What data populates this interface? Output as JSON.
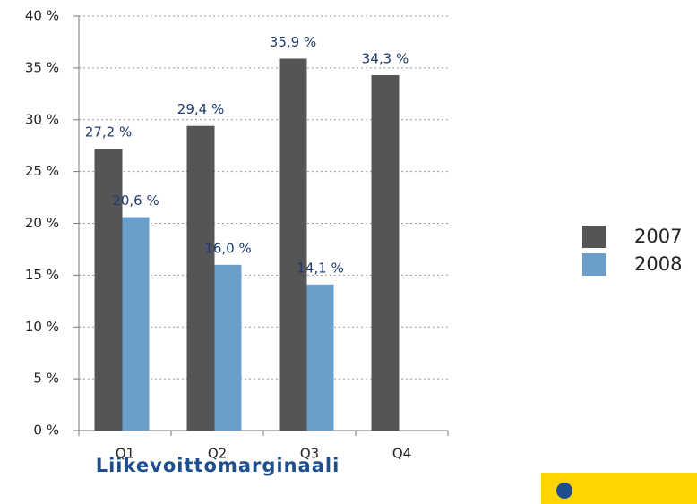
{
  "chart_data": {
    "type": "bar",
    "title": "Liikevoittomarginaali",
    "categories": [
      "Q1",
      "Q2",
      "Q3",
      "Q4"
    ],
    "series": [
      {
        "name": "2007",
        "color": "#555555",
        "values": [
          27.2,
          29.4,
          35.9,
          34.3
        ],
        "value_labels": [
          "27,2 %",
          "29,4 %",
          "35,9 %",
          "34,3 %"
        ]
      },
      {
        "name": "2008",
        "color": "#6b9ec8",
        "values": [
          20.6,
          16.0,
          14.1,
          null
        ],
        "value_labels": [
          "20,6 %",
          "16,0 %",
          "14,1 %",
          null
        ]
      }
    ],
    "ylim": [
      0,
      40
    ],
    "yticks": [
      {
        "value": 0,
        "label": "0 %"
      },
      {
        "value": 5,
        "label": "5 %"
      },
      {
        "value": 10,
        "label": "10 %"
      },
      {
        "value": 15,
        "label": "15 %"
      },
      {
        "value": 20,
        "label": "20 %"
      },
      {
        "value": 25,
        "label": "25 %"
      },
      {
        "value": 30,
        "label": "30 %"
      },
      {
        "value": 35,
        "label": "35 %"
      },
      {
        "value": 40,
        "label": "40 %"
      }
    ],
    "grid": true,
    "legend": "right"
  }
}
